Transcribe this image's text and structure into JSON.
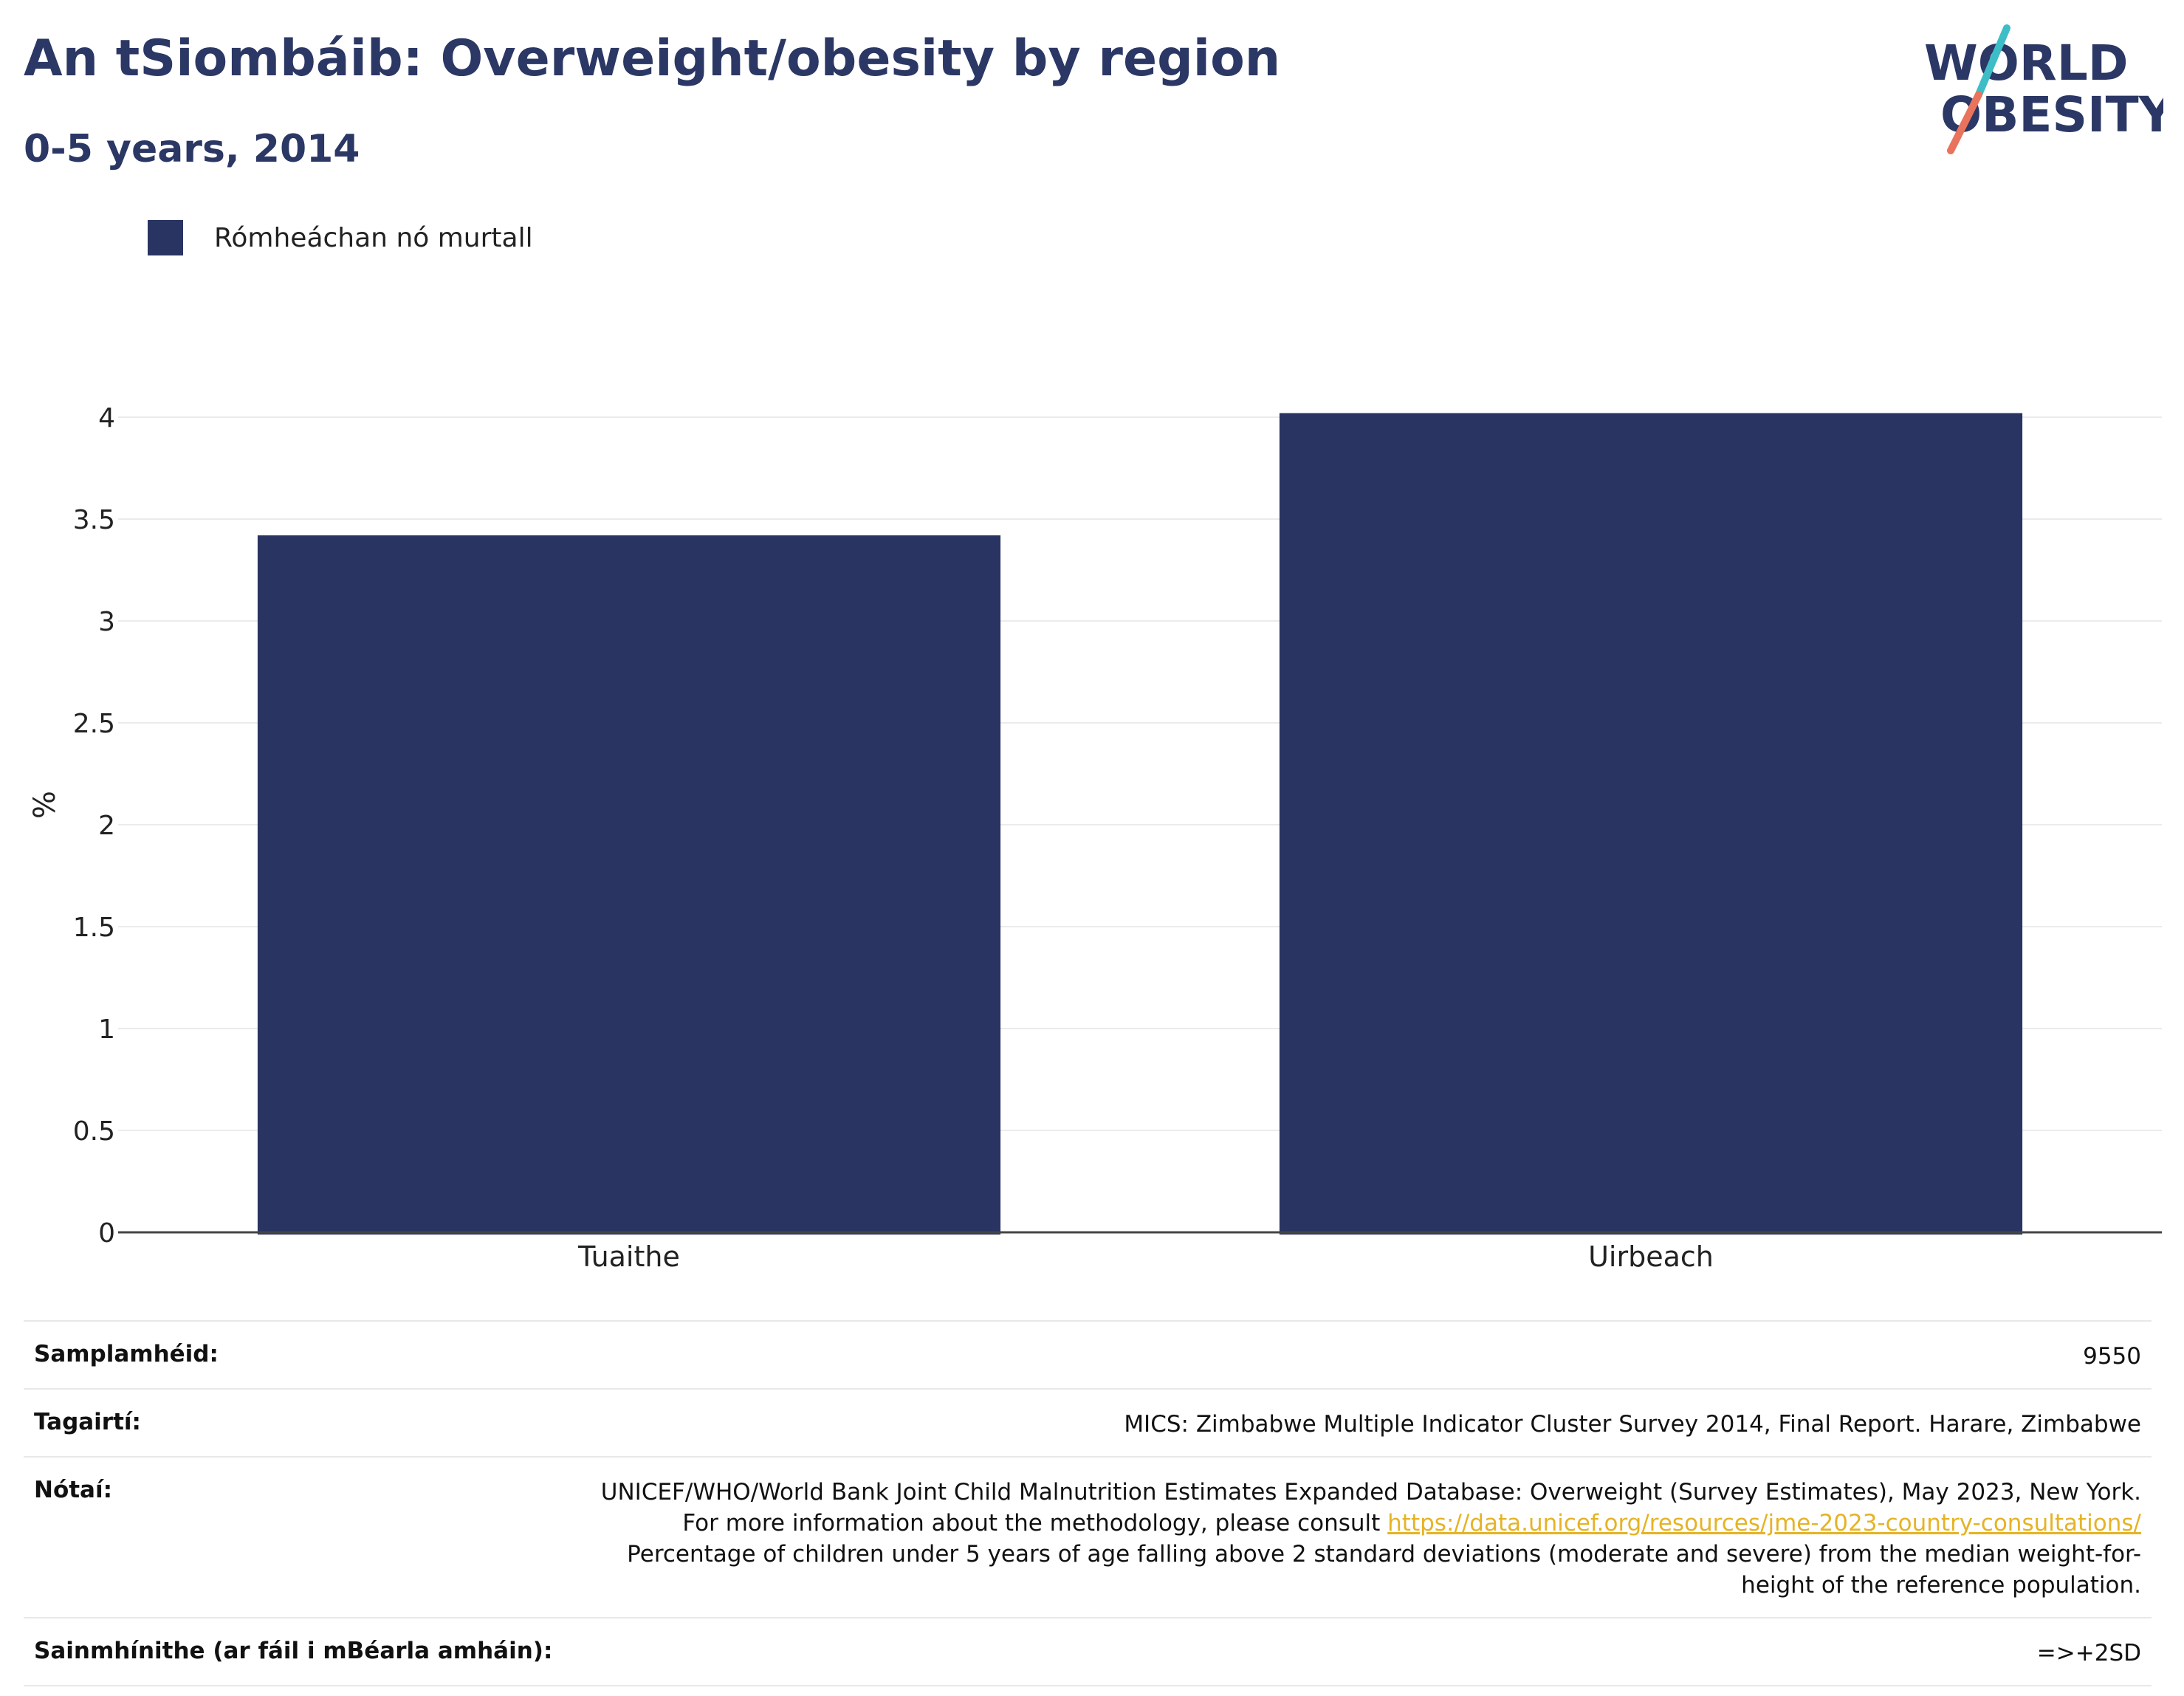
{
  "header": {
    "title": "An tSiombáib: Overweight/obesity by region",
    "subtitle": "0-5 years, 2014"
  },
  "logo": {
    "line1": "WORLD",
    "line2": "OBESITY",
    "accent_colors": [
      "#3dbdc6",
      "#e9735c"
    ]
  },
  "colors": {
    "bar": "#293462",
    "title": "#2b3764",
    "link": "#e5b325"
  },
  "legend": {
    "label": "Rómheáchan nó murtall",
    "placement": "top-left"
  },
  "chart_data": {
    "type": "bar",
    "categories": [
      "Tuaithe",
      "Uirbeach"
    ],
    "series": [
      {
        "name": "Rómheáchan nó murtall",
        "values": [
          3.42,
          4.02
        ]
      }
    ],
    "ylabel": "%",
    "ylim": [
      0,
      4
    ],
    "yticks": [
      0,
      0.5,
      1,
      1.5,
      2,
      2.5,
      3,
      3.5,
      4
    ],
    "ytick_labels": [
      "0",
      "0.5",
      "1",
      "1.5",
      "2",
      "2.5",
      "3",
      "3.5",
      "4"
    ],
    "grid": true
  },
  "info": {
    "sample_label": "Samplamhéid:",
    "sample_value": "9550",
    "refs_label": "Tagairtí:",
    "refs_value": "MICS: Zimbabwe Multiple Indicator Cluster Survey 2014, Final Report. Harare, Zimbabwe",
    "notes_label": "Nótaí:",
    "notes_text1": "UNICEF/WHO/World Bank Joint Child Malnutrition Estimates Expanded Database: Overweight (Survey Estimates), May 2023, New York. For more information about the methodology, please consult ",
    "notes_link": "https://data.unicef.org/resources/jme-2023-country-consultations/",
    "notes_text2": "Percentage of children under 5 years of age falling above 2 standard deviations (moderate and severe) from the median weight-for-height of the reference population.",
    "defs_label": "Sainmhínithe (ar fáil i mBéarla amháin):",
    "defs_value": "=>+2SD"
  }
}
